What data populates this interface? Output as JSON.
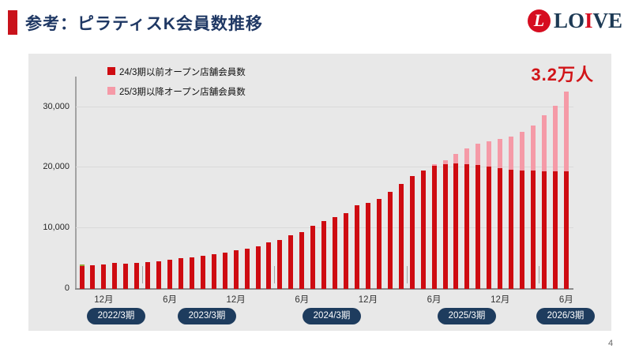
{
  "header": {
    "title": "参考：ピラティスK会員数推移"
  },
  "logo": {
    "mark_letter": "L",
    "word_lo": "LO",
    "word_i": "I",
    "word_ve": "VE",
    "circle_color": "#d60d20",
    "word_color": "#1c3954"
  },
  "annotation": {
    "text": "3.2万人",
    "color": "#d11418"
  },
  "page_number": "4",
  "colors": {
    "title_navy": "#1f3864",
    "accent_red": "#c9121b",
    "panel_gray": "#e8e8e8",
    "badge_navy": "#1e3c5e",
    "bar_red": "#ce0b11",
    "bar_pink": "#f59aa7",
    "first_bar_tip_olive": "#95a539"
  },
  "chart_data": {
    "type": "bar",
    "stacked": true,
    "title": "",
    "xlabel": "",
    "ylabel": "",
    "ylim": [
      0,
      35000
    ],
    "grid": true,
    "legend_position": "top-left",
    "legend": [
      "24/3期以前オープン店舗会員数",
      "25/3期以降オープン店舗会員数"
    ],
    "y_ticks": [
      0,
      10000,
      20000,
      30000
    ],
    "y_tick_labels": [
      "0",
      "10,000",
      "20,000",
      "30,000"
    ],
    "x_tick_labels": [
      "12月",
      "6月",
      "12月",
      "6月",
      "12月",
      "6月",
      "12月",
      "6月"
    ],
    "x_tick_bar_indices": [
      2,
      8,
      14,
      20,
      26,
      32,
      38,
      44
    ],
    "fiscal_badges": [
      "2022/3期",
      "2023/3期",
      "2024/3期",
      "2025/3期",
      "2026/3期"
    ],
    "fiscal_boundary_after_bars": [
      6,
      18,
      30,
      42
    ],
    "annotation_label": "3.2万人",
    "series": [
      {
        "name": "24/3期以前オープン店舗会員数",
        "color": "#ce0b11",
        "values": [
          3800,
          3950,
          4100,
          4250,
          4200,
          4250,
          4400,
          4600,
          4850,
          5050,
          5250,
          5500,
          5700,
          6050,
          6350,
          6700,
          7000,
          7650,
          8100,
          8900,
          9400,
          10350,
          11150,
          11900,
          12550,
          13750,
          14200,
          14850,
          16000,
          17250,
          18600,
          19550,
          20300,
          20550,
          20650,
          20600,
          20500,
          20200,
          19900,
          19600,
          19550,
          19500,
          19450,
          19350,
          19400
        ]
      },
      {
        "name": "25/3期以降オープン店舗会員数",
        "color": "#f59aa7",
        "values": [
          0,
          0,
          0,
          0,
          0,
          0,
          0,
          0,
          0,
          0,
          0,
          0,
          0,
          0,
          0,
          0,
          0,
          0,
          0,
          0,
          0,
          0,
          0,
          0,
          0,
          0,
          0,
          0,
          0,
          0,
          0,
          0,
          250,
          700,
          1600,
          2600,
          3500,
          4200,
          4800,
          5500,
          6300,
          7500,
          9200,
          10900,
          13100
        ]
      }
    ],
    "first_bar_tip": {
      "value": 250,
      "color": "#95a539"
    }
  }
}
